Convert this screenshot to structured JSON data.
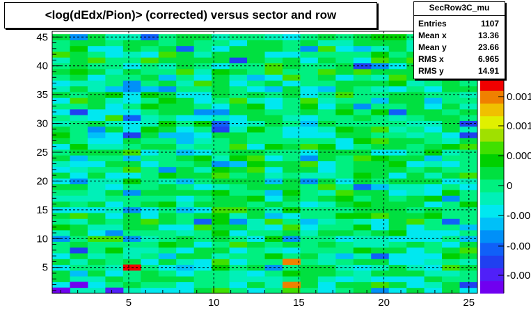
{
  "chart_data": {
    "type": "heatmap",
    "title": "<log(dEdx/Pion)> (corrected) versus sector and row",
    "histogram_name": "SecRow3C_mu",
    "x_ticks": [
      "5",
      "10",
      "15",
      "20",
      "25"
    ],
    "y_ticks": [
      "5",
      "10",
      "15",
      "20",
      "25",
      "30",
      "35",
      "40",
      "45"
    ],
    "z_ticks": [
      "-0.00",
      "-0.00",
      "-0.00",
      "0",
      "0.000",
      "0.001",
      "0.001"
    ],
    "xlim": [
      0.5,
      25.5
    ],
    "ylim": [
      0.5,
      46.0
    ],
    "nx": 24,
    "ny": 45,
    "stats": [
      {
        "label": "Entries",
        "value": "1107"
      },
      {
        "label": "Mean x",
        "value": "13.36"
      },
      {
        "label": "Mean y",
        "value": "23.66"
      },
      {
        "label": "RMS x",
        "value": "6.965"
      },
      {
        "label": "RMS y",
        "value": "14.91"
      }
    ],
    "palette": [
      "#7000f0",
      "#5020f8",
      "#2040f0",
      "#1060f8",
      "#0090f8",
      "#00c0f8",
      "#00e8f0",
      "#00f0b8",
      "#00f080",
      "#00e040",
      "#00d000",
      "#40e000",
      "#a0e000",
      "#e0f000",
      "#f0c000",
      "#f08000",
      "#f00000"
    ],
    "grid": true
  }
}
